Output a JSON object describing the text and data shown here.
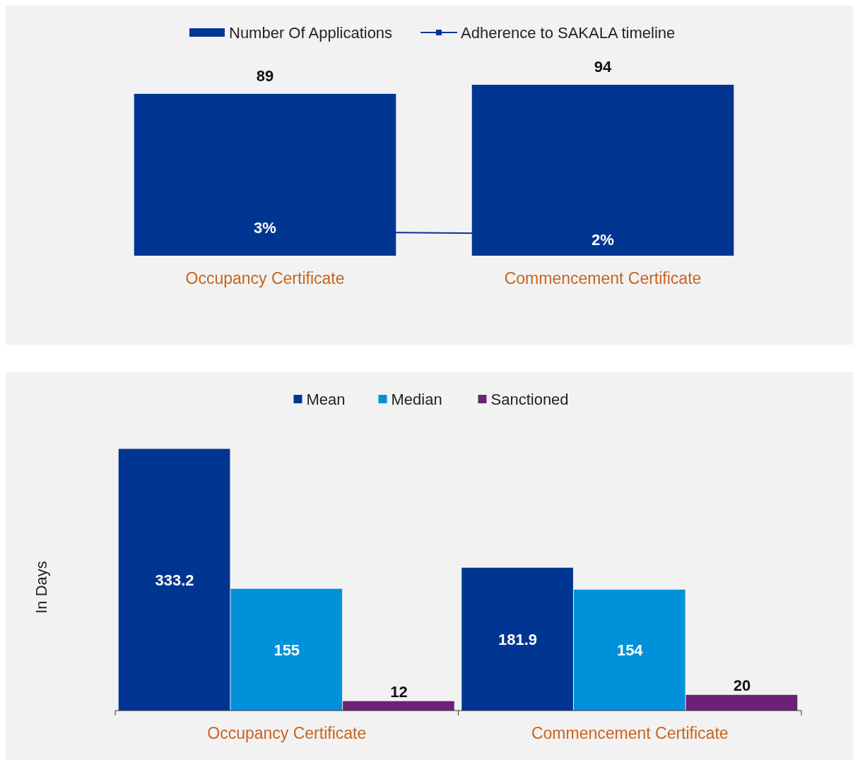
{
  "chart_data": [
    {
      "type": "bar",
      "categories": [
        "Occupancy Certificate",
        "Commencement Certificate"
      ],
      "legend": "top",
      "tick_labels": "x",
      "series": [
        {
          "name": "Number Of Applications",
          "type": "bar",
          "color": "#003591",
          "values": [
            89,
            94
          ],
          "value_labels": [
            "89",
            "94"
          ]
        },
        {
          "name": "Adherence to SAKALA timeline",
          "type": "line",
          "axis": "y2",
          "color": "#003591",
          "values": [
            3,
            2
          ],
          "value_labels": [
            "3%",
            "2%"
          ]
        }
      ]
    },
    {
      "type": "bar",
      "categories": [
        "Occupancy Certificate",
        "Commencement Certificate"
      ],
      "ylabel": "In Days",
      "legend": "top",
      "tick_labels": "x",
      "data_labels": true,
      "series": [
        {
          "name": "Mean",
          "color": "#003591",
          "values": [
            333.2,
            181.9
          ]
        },
        {
          "name": "Median",
          "color": "#0091da",
          "values": [
            155,
            154
          ]
        },
        {
          "name": "Sanctioned",
          "color": "#6d2077",
          "values": [
            12,
            20
          ]
        }
      ]
    }
  ]
}
